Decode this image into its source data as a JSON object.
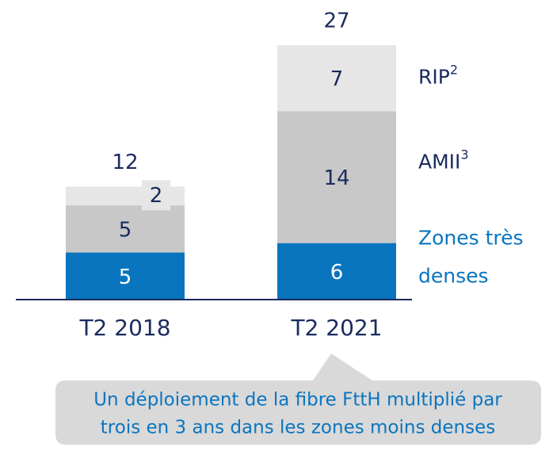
{
  "chart_data": {
    "type": "stacked_bar",
    "categories": [
      "T2 2018",
      "T2 2021"
    ],
    "series": [
      {
        "name": "Zones très denses",
        "color": "#0a75bf",
        "values": [
          5,
          6
        ]
      },
      {
        "name": "AMII",
        "note": "3",
        "color": "#c8c8c8",
        "values": [
          5,
          14
        ]
      },
      {
        "name": "RIP",
        "note": "2",
        "color": "#e6e6e6",
        "values": [
          2,
          7
        ]
      }
    ],
    "totals": [
      12,
      27
    ],
    "annotation": [
      "Un déploiement de la fibre FttH multiplié par",
      "trois en 3 ans dans les zones moins denses"
    ]
  }
}
